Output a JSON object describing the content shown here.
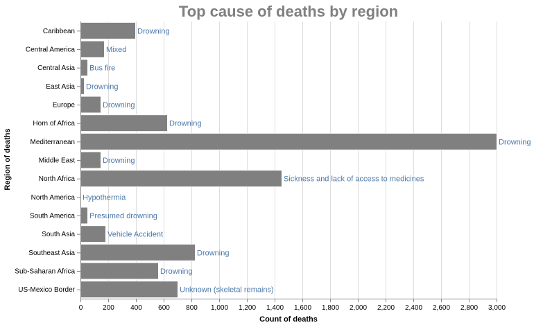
{
  "chart_data": {
    "type": "bar",
    "orientation": "horizontal",
    "title": "Top cause of deaths by region",
    "xlabel": "Count of deaths",
    "ylabel": "Region of deaths",
    "xlim": [
      0,
      3000
    ],
    "x_ticks": [
      "0",
      "200",
      "400",
      "600",
      "800",
      "1,000",
      "1,200",
      "1,400",
      "1,600",
      "1,800",
      "2,000",
      "2,200",
      "2,400",
      "2,600",
      "2,800",
      "3,000"
    ],
    "grid": true,
    "bar_color": "#808080",
    "label_color": "#4c78a8",
    "categories": [
      "Caribbean",
      "Central America",
      "Central Asia",
      "East Asia",
      "Europe",
      "Horn of Africa",
      "Mediterranean",
      "Middle East",
      "North Africa",
      "North America",
      "South America",
      "South Asia",
      "Southeast Asia",
      "Sub-Saharan Africa",
      "US-Mexico Border"
    ],
    "values": [
      395,
      170,
      50,
      25,
      145,
      625,
      3020,
      145,
      1450,
      0,
      50,
      180,
      825,
      560,
      700
    ],
    "labels": [
      "Drowning",
      "Mixed",
      "Bus fire",
      "Drowning",
      "Drowning",
      "Drowning",
      "Drowning",
      "Drowning",
      "Sickness and lack of access to medicines",
      "Hypothermia",
      "Presumed drowning",
      "Vehicle Accident",
      "Drowning",
      "Drowning",
      "Unknown (skeletal remains)"
    ]
  }
}
